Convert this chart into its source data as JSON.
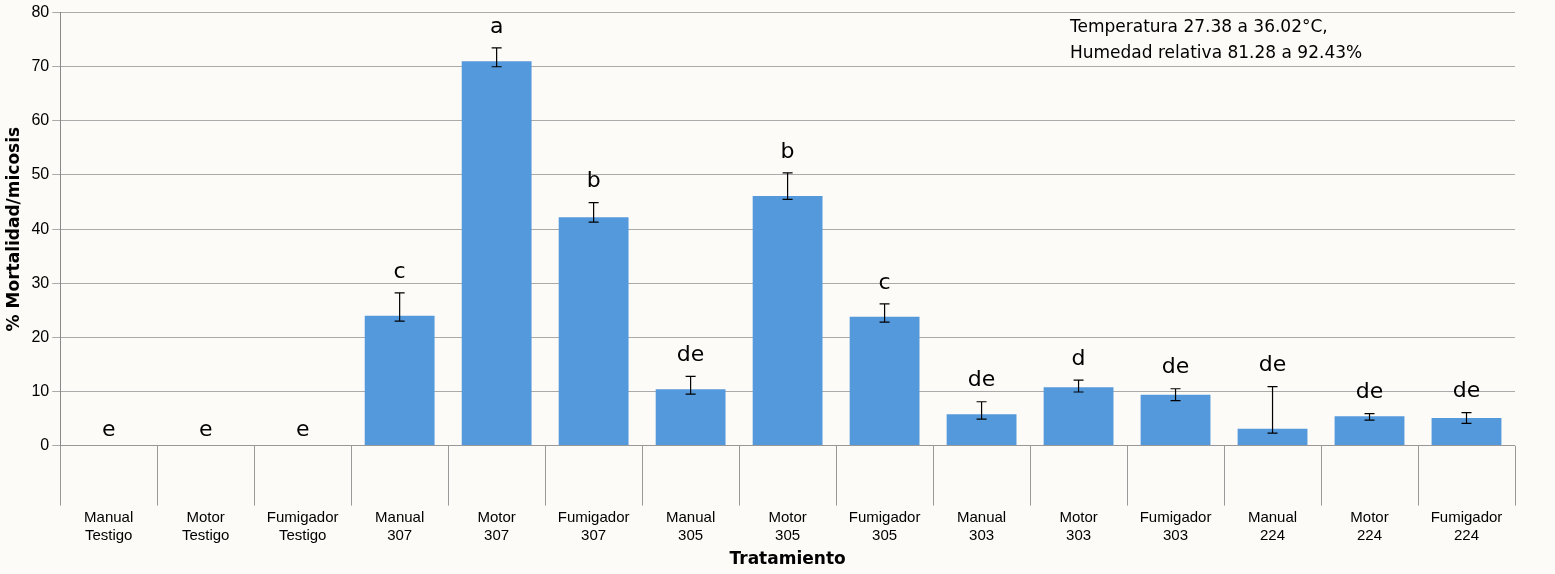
{
  "chart_data": {
    "type": "bar",
    "xlabel": "Tratamiento",
    "ylabel": "% Mortalidad/micosis",
    "categories": [
      "Manual\nTestigo",
      "Motor\nTestigo",
      "Fumigador\nTestigo",
      "Manual\n307",
      "Motor\n307",
      "Fumigador\n307",
      "Manual\n305",
      "Motor\n305",
      "Fumigador\n305",
      "Manual\n303",
      "Motor\n303",
      "Fumigador\n303",
      "Manual\n224",
      "Motor\n224",
      "Fumigador\n224"
    ],
    "values": [
      0,
      0,
      0,
      24,
      71,
      42.2,
      10.4,
      46.1,
      23.8,
      5.8,
      10.8,
      9.4,
      3.1,
      5.4,
      5.1
    ],
    "errors": [
      null,
      null,
      null,
      [
        23,
        28.2
      ],
      [
        70,
        73.5
      ],
      [
        41.3,
        44.9
      ],
      [
        9.5,
        12.8
      ],
      [
        45.5,
        50.4
      ],
      [
        22.8,
        26.2
      ],
      [
        4.9,
        8.1
      ],
      [
        9.9,
        12.1
      ],
      [
        8.3,
        10.5
      ],
      [
        2.3,
        10.9
      ],
      [
        4.7,
        5.9
      ],
      [
        4.1,
        6.1
      ]
    ],
    "color": "#5499dc",
    "ylim": [
      0,
      80
    ],
    "yticks": [
      0,
      10,
      20,
      30,
      40,
      50,
      60,
      70,
      80
    ],
    "grid": "y",
    "legend": false,
    "value_labels": [
      "e",
      "e",
      "e",
      "c",
      "a",
      "b",
      "de",
      "b",
      "c",
      "de",
      "d",
      "de",
      "de",
      "de",
      "de"
    ],
    "annotations": [
      "Temperatura 27.38 a 36.02°C,\nHumedad relativa 81.28 a 92.43%"
    ]
  }
}
